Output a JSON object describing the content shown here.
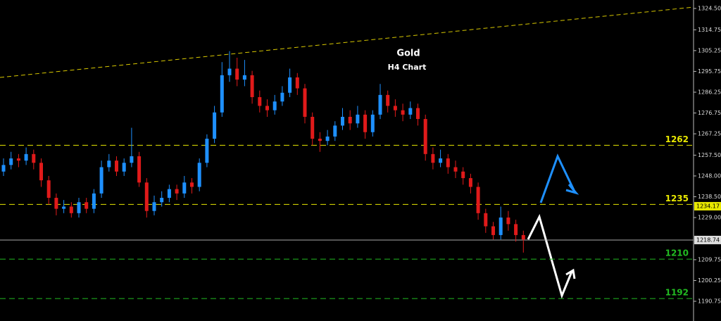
{
  "chart_data": {
    "type": "candlestick",
    "title": "Gold",
    "subtitle": "H4 Chart",
    "open": [
      1250,
      1253,
      1256,
      1255,
      1258,
      1254,
      1246,
      1238,
      1233,
      1234,
      1231,
      1236,
      1233,
      1240,
      1252,
      1255,
      1250,
      1254,
      1257,
      1245,
      1232,
      1236,
      1238,
      1242,
      1240,
      1245,
      1243,
      1254,
      1265,
      1277,
      1294,
      1297,
      1292,
      1294,
      1284,
      1280,
      1278,
      1282,
      1286,
      1293,
      1288,
      1275,
      1265,
      1264,
      1266,
      1271,
      1275,
      1272,
      1276,
      1268,
      1276,
      1285,
      1280,
      1278,
      1276,
      1279,
      1274,
      1258,
      1254,
      1256,
      1252,
      1250,
      1247,
      1243,
      1231,
      1225,
      1221,
      1229,
      1226,
      1221
    ],
    "high": [
      1256,
      1259,
      1258,
      1261,
      1260,
      1256,
      1248,
      1240,
      1237,
      1236,
      1238,
      1238,
      1242,
      1255,
      1258,
      1257,
      1256,
      1270,
      1259,
      1247,
      1239,
      1241,
      1244,
      1244,
      1248,
      1247,
      1256,
      1267,
      1280,
      1300,
      1305,
      1302,
      1301,
      1296,
      1287,
      1283,
      1285,
      1289,
      1297,
      1295,
      1290,
      1277,
      1268,
      1269,
      1273,
      1279,
      1278,
      1280,
      1278,
      1278,
      1290,
      1287,
      1283,
      1281,
      1282,
      1281,
      1276,
      1261,
      1260,
      1258,
      1255,
      1252,
      1249,
      1245,
      1233,
      1227,
      1234,
      1232,
      1228,
      1223
    ],
    "low": [
      1248,
      1251,
      1252,
      1253,
      1251,
      1243,
      1235,
      1230,
      1231,
      1229,
      1229,
      1231,
      1231,
      1238,
      1250,
      1248,
      1248,
      1252,
      1243,
      1229,
      1230,
      1234,
      1236,
      1237,
      1238,
      1240,
      1241,
      1252,
      1263,
      1275,
      1291,
      1289,
      1289,
      1281,
      1277,
      1275,
      1276,
      1280,
      1284,
      1285,
      1272,
      1262,
      1259,
      1262,
      1264,
      1269,
      1269,
      1270,
      1265,
      1266,
      1274,
      1277,
      1275,
      1273,
      1274,
      1271,
      1255,
      1251,
      1252,
      1249,
      1247,
      1244,
      1240,
      1228,
      1222,
      1219,
      1219,
      1223,
      1218,
      1213
    ],
    "close": [
      1253,
      1256,
      1255,
      1258,
      1254,
      1246,
      1238,
      1233,
      1234,
      1231,
      1236,
      1233,
      1240,
      1252,
      1255,
      1250,
      1254,
      1257,
      1245,
      1232,
      1236,
      1238,
      1242,
      1240,
      1245,
      1243,
      1254,
      1265,
      1277,
      1294,
      1297,
      1292,
      1294,
      1284,
      1280,
      1278,
      1282,
      1286,
      1293,
      1288,
      1275,
      1265,
      1264,
      1266,
      1271,
      1275,
      1272,
      1276,
      1268,
      1276,
      1285,
      1280,
      1278,
      1276,
      1279,
      1274,
      1258,
      1254,
      1256,
      1252,
      1250,
      1247,
      1243,
      1231,
      1225,
      1221,
      1229,
      1226,
      1221,
      1219
    ],
    "up_color": "#1e90ff",
    "down_color": "#e01a1a",
    "ylim": [
      1181.75,
      1328.36
    ],
    "yticks": [
      {
        "value": 1324.5,
        "label": "1324.50"
      },
      {
        "value": 1314.75,
        "label": "1314.75"
      },
      {
        "value": 1305.25,
        "label": "1305.25"
      },
      {
        "value": 1295.75,
        "label": "1295.75"
      },
      {
        "value": 1286.25,
        "label": "1286.25"
      },
      {
        "value": 1276.75,
        "label": "1276.75"
      },
      {
        "value": 1267.25,
        "label": "1267.25"
      },
      {
        "value": 1257.5,
        "label": "1257.50"
      },
      {
        "value": 1248,
        "label": "1248.00"
      },
      {
        "value": 1238.5,
        "label": "1238.50"
      },
      {
        "value": 1229,
        "label": "1229.00"
      },
      {
        "value": 1209.75,
        "label": "1209.75"
      },
      {
        "value": 1200.25,
        "label": "1200.25"
      },
      {
        "value": 1190.75,
        "label": "1190.75"
      }
    ],
    "levels": [
      {
        "value": 1262,
        "label": "1262",
        "color": "#e8e800"
      },
      {
        "value": 1235,
        "label": "1235",
        "color": "#e8e800"
      },
      {
        "value": 1210,
        "label": "1210",
        "color": "#22bb22"
      },
      {
        "value": 1192,
        "label": "1192",
        "color": "#22bb22"
      }
    ],
    "price_tags": [
      {
        "value": 1234.17,
        "label": "1234.17",
        "color": "#e8e800"
      },
      {
        "value": 1218.74,
        "label": "1218.74",
        "color": "#dddddd"
      }
    ],
    "trendline": [
      1293,
      1325.1
    ],
    "trendline_color": "#d8c800"
  }
}
